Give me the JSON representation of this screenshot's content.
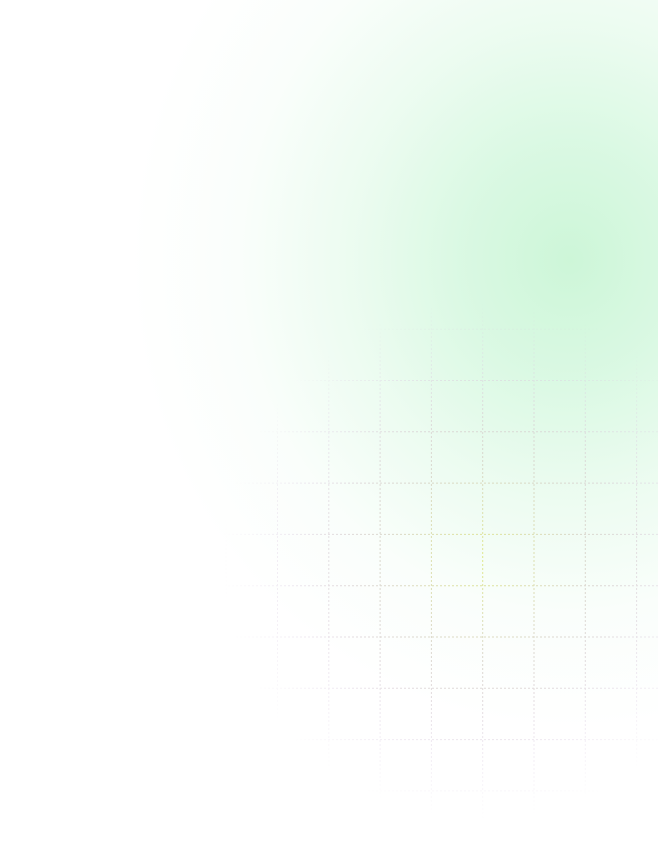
{
  "background": {
    "base_color": "#ffffff",
    "glow_color": "#cdf6d8",
    "grid_line_colors": [
      "#d6d6d6",
      "#e6ec9a",
      "#e8d6ea"
    ],
    "grid_style": "dashed"
  }
}
